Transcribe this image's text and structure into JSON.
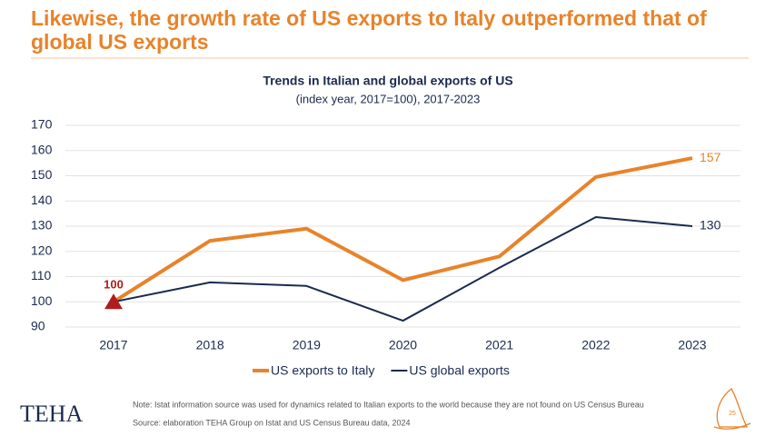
{
  "header": {
    "title_lines": [
      "Likewise, the growth rate of US exports to Italy outperformed that of",
      "global US exports"
    ]
  },
  "chart_data": {
    "type": "line",
    "title": "Trends in Italian and global exports of US",
    "subtitle": "(index year, 2017=100), 2017-2023",
    "categories": [
      "2017",
      "2018",
      "2019",
      "2020",
      "2021",
      "2022",
      "2023"
    ],
    "series": [
      {
        "name": "US exports to Italy",
        "color": "#e8832a",
        "values": [
          100,
          124.2,
          129,
          108.6,
          118,
          149.5,
          157
        ]
      },
      {
        "name": "US global exports",
        "color": "#1b2a4e",
        "values": [
          100,
          107.7,
          106.3,
          92.5,
          113.5,
          133.6,
          130
        ]
      }
    ],
    "ylim": [
      90,
      170
    ],
    "yticks": [
      90,
      100,
      110,
      120,
      130,
      140,
      150,
      160,
      170
    ],
    "grid": true
  },
  "footer": {
    "logo": "TEHA",
    "note": "Note: Istat information source was used for dynamics related to Italian exports to the world because they are not found on US Census Bureau",
    "source": "Source: elaboration TEHA Group on Istat and US Census Bureau data, 2024",
    "page": "25"
  }
}
